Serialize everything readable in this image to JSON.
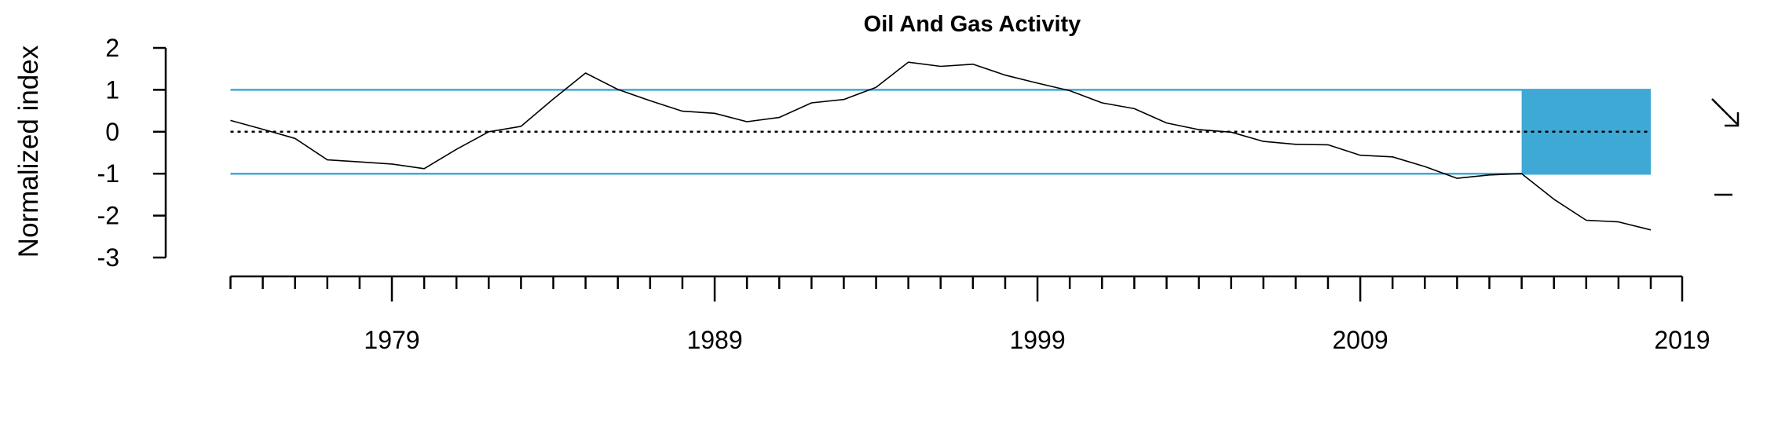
{
  "chart_data": {
    "type": "line",
    "title": "Oil And Gas Activity",
    "xlabel": "",
    "ylabel": "Normalized index",
    "xlim": [
      1974,
      2019
    ],
    "ylim": [
      -3,
      2
    ],
    "x_ticks": [
      1979,
      1989,
      1999,
      2009,
      2019
    ],
    "y_ticks": [
      2,
      1,
      0,
      -1,
      -2,
      -3
    ],
    "x": [
      1974,
      1975,
      1976,
      1977,
      1978,
      1979,
      1980,
      1981,
      1982,
      1983,
      1984,
      1985,
      1986,
      1987,
      1988,
      1989,
      1990,
      1991,
      1992,
      1993,
      1994,
      1995,
      1996,
      1997,
      1998,
      1999,
      2000,
      2001,
      2002,
      2003,
      2004,
      2005,
      2006,
      2007,
      2008,
      2009,
      2010,
      2011,
      2012,
      2013,
      2014,
      2015,
      2016,
      2017,
      2018
    ],
    "series": [
      {
        "values": [
          0.27,
          0.06,
          -0.16,
          -0.67,
          -0.72,
          -0.77,
          -0.88,
          -0.42,
          0.0,
          0.13,
          0.78,
          1.4,
          1.01,
          0.74,
          0.49,
          0.44,
          0.24,
          0.34,
          0.69,
          0.77,
          1.06,
          1.66,
          1.56,
          1.61,
          1.35,
          1.16,
          0.98,
          0.69,
          0.55,
          0.21,
          0.05,
          -0.01,
          -0.23,
          -0.3,
          -0.31,
          -0.56,
          -0.6,
          -0.83,
          -1.11,
          -1.03,
          -1.0,
          -1.61,
          -2.11,
          -2.15,
          -2.34
        ]
      }
    ],
    "reference_lines": [
      {
        "y": 1,
        "style": "solid",
        "color": "#3fa9d6"
      },
      {
        "y": 0,
        "style": "dotted",
        "color": "#000000"
      },
      {
        "y": -1,
        "style": "solid",
        "color": "#3fa9d6"
      }
    ],
    "highlight_band": {
      "x": [
        2014,
        2018
      ],
      "y": [
        -1,
        1
      ],
      "color": "#3fa9d6"
    },
    "trend_indicator": "arrow-down-right",
    "grid": false,
    "colors": {
      "series_line": "#000000",
      "band": "#3fa9d6",
      "reference": "#3fa9d6"
    }
  }
}
